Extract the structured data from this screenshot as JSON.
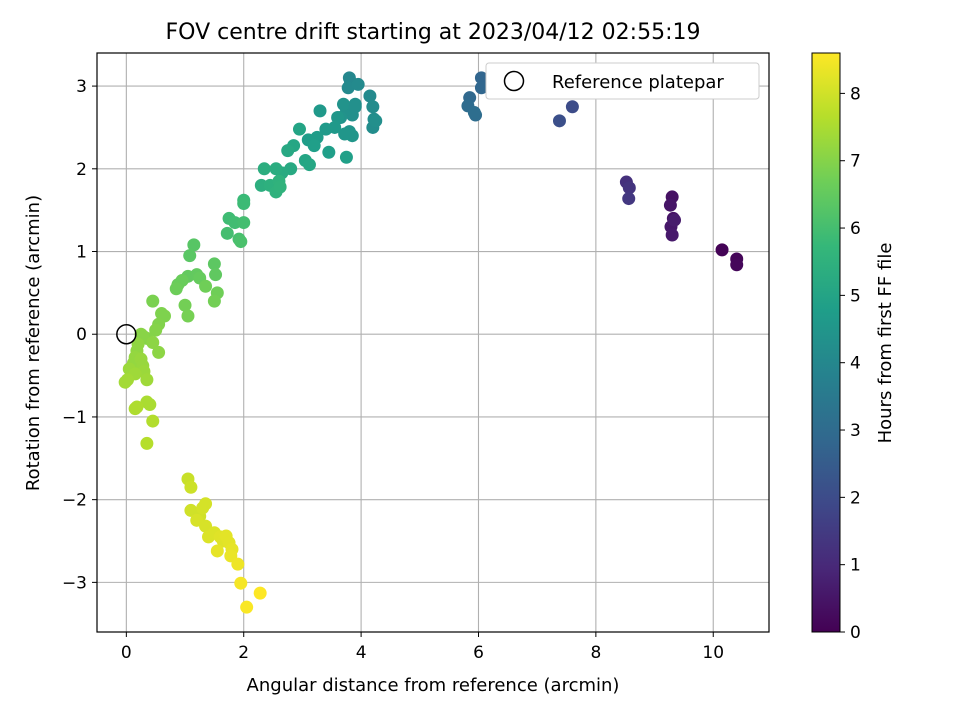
{
  "chart_data": {
    "type": "scatter",
    "title": "FOV centre drift starting at 2023/04/12 02:55:19",
    "xlabel": "Angular distance from reference (arcmin)",
    "ylabel": "Rotation from reference (arcmin)",
    "xlim": [
      -0.5,
      10.95
    ],
    "ylim": [
      -3.6,
      3.4
    ],
    "xticks": [
      0,
      2,
      4,
      6,
      8,
      10
    ],
    "yticks": [
      -3,
      -2,
      -1,
      0,
      1,
      2,
      3
    ],
    "grid": true,
    "legend": {
      "position": "top-right",
      "entries": [
        "Reference platepar"
      ]
    },
    "reference_point": {
      "x": 0,
      "y": 0
    },
    "colorbar": {
      "label": "Hours from first FF file",
      "colormap": "viridis",
      "range": [
        0,
        8.6
      ],
      "ticks": [
        0,
        1,
        2,
        3,
        4,
        5,
        6,
        7,
        8
      ]
    },
    "colormap_stops": [
      "#440154",
      "#482878",
      "#3e4989",
      "#31688e",
      "#26828e",
      "#1f9e89",
      "#35b779",
      "#6ece58",
      "#b5de2b",
      "#fde725"
    ],
    "series": [
      {
        "values": [
          {
            "x": 10.15,
            "y": 1.02,
            "c": 0.05
          },
          {
            "x": 10.4,
            "y": 0.91,
            "c": 0.1
          },
          {
            "x": 10.4,
            "y": 0.84,
            "c": 0.15
          },
          {
            "x": 9.3,
            "y": 1.66,
            "c": 0.4
          },
          {
            "x": 9.32,
            "y": 1.4,
            "c": 0.45
          },
          {
            "x": 9.27,
            "y": 1.56,
            "c": 0.5
          },
          {
            "x": 9.28,
            "y": 1.3,
            "c": 0.55
          },
          {
            "x": 9.3,
            "y": 1.2,
            "c": 0.6
          },
          {
            "x": 9.34,
            "y": 1.38,
            "c": 0.65
          },
          {
            "x": 8.52,
            "y": 1.84,
            "c": 1.2
          },
          {
            "x": 8.57,
            "y": 1.77,
            "c": 1.3
          },
          {
            "x": 8.56,
            "y": 1.64,
            "c": 1.4
          },
          {
            "x": 7.6,
            "y": 2.75,
            "c": 2.0
          },
          {
            "x": 7.38,
            "y": 2.58,
            "c": 2.1
          },
          {
            "x": 6.05,
            "y": 3.1,
            "c": 2.8
          },
          {
            "x": 6.05,
            "y": 2.98,
            "c": 2.85
          },
          {
            "x": 5.85,
            "y": 2.86,
            "c": 2.9
          },
          {
            "x": 5.82,
            "y": 2.76,
            "c": 3.0
          },
          {
            "x": 5.95,
            "y": 2.65,
            "c": 3.05
          },
          {
            "x": 5.93,
            "y": 2.68,
            "c": 3.1
          },
          {
            "x": 3.8,
            "y": 3.1,
            "c": 4.0
          },
          {
            "x": 3.82,
            "y": 3.05,
            "c": 4.0
          },
          {
            "x": 3.78,
            "y": 2.98,
            "c": 4.05
          },
          {
            "x": 3.95,
            "y": 3.02,
            "c": 4.1
          },
          {
            "x": 4.15,
            "y": 2.88,
            "c": 4.1
          },
          {
            "x": 4.2,
            "y": 2.75,
            "c": 4.15
          },
          {
            "x": 4.22,
            "y": 2.6,
            "c": 4.2
          },
          {
            "x": 4.2,
            "y": 2.5,
            "c": 4.2
          },
          {
            "x": 4.25,
            "y": 2.58,
            "c": 4.25
          },
          {
            "x": 3.9,
            "y": 2.78,
            "c": 4.3
          },
          {
            "x": 3.85,
            "y": 2.65,
            "c": 4.3
          },
          {
            "x": 3.75,
            "y": 2.72,
            "c": 4.35
          },
          {
            "x": 3.7,
            "y": 2.78,
            "c": 4.4
          },
          {
            "x": 3.65,
            "y": 2.62,
            "c": 4.4
          },
          {
            "x": 3.8,
            "y": 2.45,
            "c": 4.45
          },
          {
            "x": 3.85,
            "y": 2.4,
            "c": 4.5
          },
          {
            "x": 3.72,
            "y": 2.42,
            "c": 4.5
          },
          {
            "x": 3.6,
            "y": 2.62,
            "c": 4.55
          },
          {
            "x": 3.55,
            "y": 2.5,
            "c": 4.6
          },
          {
            "x": 3.3,
            "y": 2.7,
            "c": 4.6
          },
          {
            "x": 3.4,
            "y": 2.48,
            "c": 4.65
          },
          {
            "x": 3.25,
            "y": 2.38,
            "c": 4.7
          },
          {
            "x": 3.1,
            "y": 2.35,
            "c": 4.75
          },
          {
            "x": 3.2,
            "y": 2.28,
            "c": 4.8
          },
          {
            "x": 3.45,
            "y": 2.2,
            "c": 4.8
          },
          {
            "x": 3.75,
            "y": 2.14,
            "c": 4.85
          },
          {
            "x": 3.9,
            "y": 2.75,
            "c": 4.3
          },
          {
            "x": 2.95,
            "y": 2.48,
            "c": 5.0
          },
          {
            "x": 3.05,
            "y": 2.1,
            "c": 5.05
          },
          {
            "x": 3.12,
            "y": 2.05,
            "c": 5.1
          },
          {
            "x": 2.85,
            "y": 2.28,
            "c": 5.1
          },
          {
            "x": 2.75,
            "y": 2.22,
            "c": 5.15
          },
          {
            "x": 2.8,
            "y": 2.0,
            "c": 5.2
          },
          {
            "x": 2.65,
            "y": 1.95,
            "c": 5.25
          },
          {
            "x": 2.55,
            "y": 2.0,
            "c": 5.3
          },
          {
            "x": 2.35,
            "y": 2.0,
            "c": 5.35
          },
          {
            "x": 2.3,
            "y": 1.8,
            "c": 5.4
          },
          {
            "x": 2.45,
            "y": 1.8,
            "c": 5.45
          },
          {
            "x": 2.55,
            "y": 1.72,
            "c": 5.5
          },
          {
            "x": 2.6,
            "y": 1.85,
            "c": 5.5
          },
          {
            "x": 2.62,
            "y": 1.78,
            "c": 5.55
          },
          {
            "x": 2.0,
            "y": 1.62,
            "c": 5.8
          },
          {
            "x": 2.0,
            "y": 1.58,
            "c": 5.85
          },
          {
            "x": 1.75,
            "y": 1.4,
            "c": 5.9
          },
          {
            "x": 1.85,
            "y": 1.35,
            "c": 5.95
          },
          {
            "x": 2.0,
            "y": 1.35,
            "c": 6.0
          },
          {
            "x": 1.72,
            "y": 1.22,
            "c": 6.0
          },
          {
            "x": 1.92,
            "y": 1.15,
            "c": 6.05
          },
          {
            "x": 1.95,
            "y": 1.12,
            "c": 6.1
          },
          {
            "x": 1.15,
            "y": 1.08,
            "c": 6.3
          },
          {
            "x": 1.08,
            "y": 0.95,
            "c": 6.35
          },
          {
            "x": 1.5,
            "y": 0.85,
            "c": 6.4
          },
          {
            "x": 1.52,
            "y": 0.72,
            "c": 6.45
          },
          {
            "x": 1.05,
            "y": 0.7,
            "c": 6.5
          },
          {
            "x": 1.2,
            "y": 0.72,
            "c": 6.5
          },
          {
            "x": 1.25,
            "y": 0.68,
            "c": 6.55
          },
          {
            "x": 0.95,
            "y": 0.65,
            "c": 6.6
          },
          {
            "x": 0.88,
            "y": 0.6,
            "c": 6.6
          },
          {
            "x": 0.85,
            "y": 0.55,
            "c": 6.65
          },
          {
            "x": 1.35,
            "y": 0.58,
            "c": 6.7
          },
          {
            "x": 1.55,
            "y": 0.5,
            "c": 6.7
          },
          {
            "x": 1.5,
            "y": 0.4,
            "c": 6.75
          },
          {
            "x": 1.0,
            "y": 0.35,
            "c": 6.75
          },
          {
            "x": 1.05,
            "y": 0.22,
            "c": 6.8
          },
          {
            "x": 0.45,
            "y": 0.4,
            "c": 6.85
          },
          {
            "x": 0.6,
            "y": 0.25,
            "c": 6.9
          },
          {
            "x": 0.65,
            "y": 0.22,
            "c": 6.9
          },
          {
            "x": 0.55,
            "y": 0.12,
            "c": 6.95
          },
          {
            "x": 0.5,
            "y": 0.05,
            "c": 7.0
          },
          {
            "x": 0.35,
            "y": -0.05,
            "c": 7.0
          },
          {
            "x": 0.25,
            "y": 0.0,
            "c": 7.05
          },
          {
            "x": 0.28,
            "y": -0.02,
            "c": 7.05
          },
          {
            "x": 0.45,
            "y": -0.1,
            "c": 7.1
          },
          {
            "x": 0.55,
            "y": -0.22,
            "c": 7.1
          },
          {
            "x": 0.2,
            "y": -0.12,
            "c": 7.15
          },
          {
            "x": 0.18,
            "y": -0.2,
            "c": 7.15
          },
          {
            "x": 0.15,
            "y": -0.28,
            "c": 7.2
          },
          {
            "x": 0.12,
            "y": -0.35,
            "c": 7.2
          },
          {
            "x": 0.25,
            "y": -0.3,
            "c": 7.25
          },
          {
            "x": 0.28,
            "y": -0.38,
            "c": 7.25
          },
          {
            "x": 0.05,
            "y": -0.42,
            "c": 7.3
          },
          {
            "x": 0.3,
            "y": -0.45,
            "c": 7.3
          },
          {
            "x": 0.15,
            "y": -0.48,
            "c": 7.35
          },
          {
            "x": 0.35,
            "y": -0.55,
            "c": 7.35
          },
          {
            "x": 0.02,
            "y": -0.55,
            "c": 7.4
          },
          {
            "x": -0.02,
            "y": -0.58,
            "c": 7.4
          },
          {
            "x": 0.35,
            "y": -0.82,
            "c": 7.5
          },
          {
            "x": 0.4,
            "y": -0.85,
            "c": 7.5
          },
          {
            "x": 0.18,
            "y": -0.88,
            "c": 7.55
          },
          {
            "x": 0.15,
            "y": -0.9,
            "c": 7.55
          },
          {
            "x": 0.45,
            "y": -1.05,
            "c": 7.6
          },
          {
            "x": 0.35,
            "y": -1.32,
            "c": 7.65
          },
          {
            "x": 1.05,
            "y": -1.75,
            "c": 7.9
          },
          {
            "x": 1.1,
            "y": -1.85,
            "c": 7.95
          },
          {
            "x": 1.1,
            "y": -2.13,
            "c": 8.0
          },
          {
            "x": 1.25,
            "y": -2.2,
            "c": 8.0
          },
          {
            "x": 1.35,
            "y": -2.05,
            "c": 8.05
          },
          {
            "x": 1.3,
            "y": -2.1,
            "c": 8.05
          },
          {
            "x": 1.2,
            "y": -2.25,
            "c": 8.1
          },
          {
            "x": 1.35,
            "y": -2.32,
            "c": 8.1
          },
          {
            "x": 1.4,
            "y": -2.45,
            "c": 8.15
          },
          {
            "x": 1.5,
            "y": -2.4,
            "c": 8.15
          },
          {
            "x": 1.6,
            "y": -2.45,
            "c": 8.2
          },
          {
            "x": 1.65,
            "y": -2.5,
            "c": 8.2
          },
          {
            "x": 1.7,
            "y": -2.44,
            "c": 8.25
          },
          {
            "x": 1.75,
            "y": -2.52,
            "c": 8.25
          },
          {
            "x": 1.8,
            "y": -2.6,
            "c": 8.3
          },
          {
            "x": 1.55,
            "y": -2.62,
            "c": 8.3
          },
          {
            "x": 1.78,
            "y": -2.68,
            "c": 8.35
          },
          {
            "x": 1.9,
            "y": -2.78,
            "c": 8.4
          },
          {
            "x": 1.95,
            "y": -3.01,
            "c": 8.5
          },
          {
            "x": 2.05,
            "y": -3.3,
            "c": 8.55
          },
          {
            "x": 2.28,
            "y": -3.13,
            "c": 8.6
          }
        ]
      }
    ]
  }
}
